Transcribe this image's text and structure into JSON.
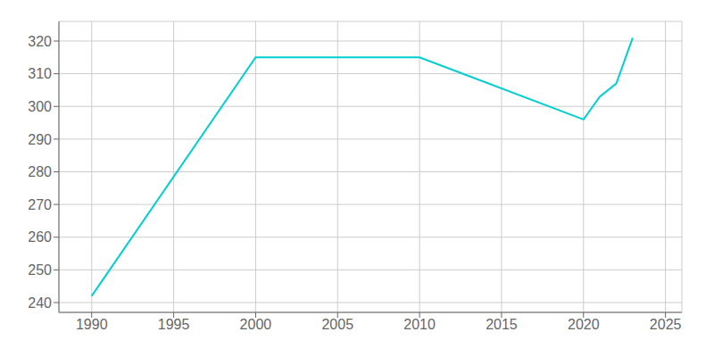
{
  "chart_data": {
    "type": "line",
    "x": [
      1990,
      2000,
      2010,
      2020,
      2021,
      2022,
      2023
    ],
    "values": [
      242,
      315,
      315,
      296,
      303,
      307,
      321
    ],
    "color": "#00CED1",
    "xlim": [
      1988,
      2026
    ],
    "ylim": [
      237,
      326
    ],
    "xticks": [
      1990,
      1995,
      2000,
      2005,
      2010,
      2015,
      2020,
      2025
    ],
    "yticks": [
      240,
      250,
      260,
      270,
      280,
      290,
      300,
      310,
      320
    ],
    "grid": true
  }
}
